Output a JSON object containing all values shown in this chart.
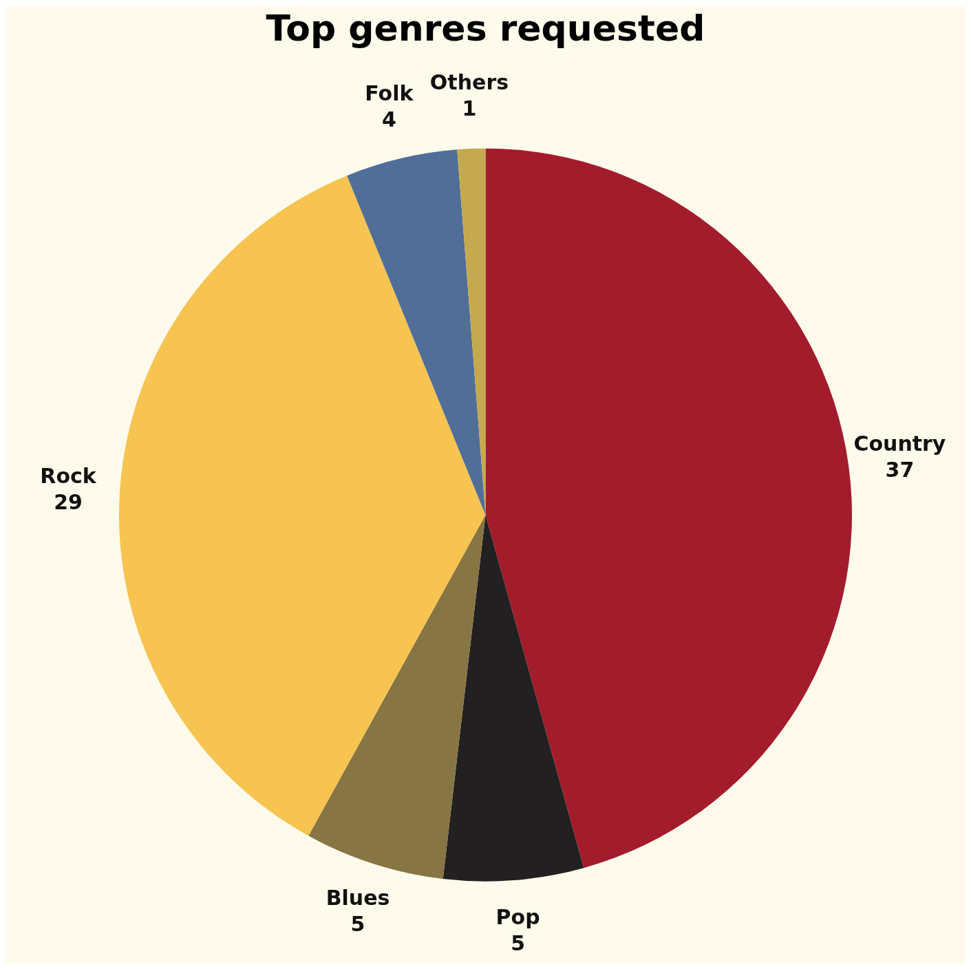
{
  "chart_data": {
    "type": "pie",
    "title": "Top genres requested",
    "categories": [
      "Country",
      "Pop",
      "Blues",
      "Rock",
      "Folk",
      "Others"
    ],
    "values": [
      37,
      5,
      5,
      29,
      4,
      1
    ],
    "colors": [
      "#a31c2c",
      "#222021",
      "#877543",
      "#f7c451",
      "#506e98",
      "#c4a94e"
    ],
    "data_labels": true,
    "legend": false
  }
}
